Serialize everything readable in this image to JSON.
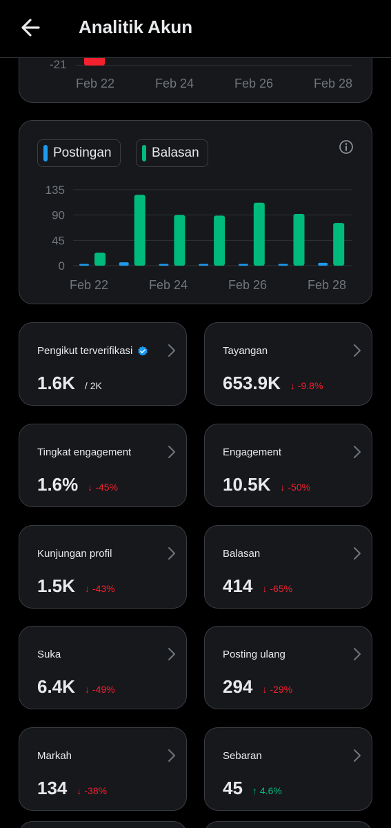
{
  "header": {
    "title": "Analitik Akun"
  },
  "top_chart": {
    "tick_label": "-21",
    "x_labels": [
      "Feb 22",
      "Feb 24",
      "Feb 26",
      "Feb 28"
    ],
    "bar_color": "#f4212e"
  },
  "legend": {
    "items": [
      {
        "label": "Postingan",
        "color": "#1d9bf0"
      },
      {
        "label": "Balasan",
        "color": "#00ba7c"
      }
    ]
  },
  "chart_data": {
    "type": "bar",
    "categories": [
      "Feb 22",
      "Feb 23",
      "Feb 24",
      "Feb 25",
      "Feb 26",
      "Feb 27",
      "Feb 28"
    ],
    "series": [
      {
        "name": "Postingan",
        "color": "#1d9bf0",
        "values": [
          2,
          6,
          3,
          2,
          3,
          3,
          5
        ]
      },
      {
        "name": "Balasan",
        "color": "#00ba7c",
        "values": [
          23,
          126,
          90,
          89,
          112,
          92,
          76
        ]
      }
    ],
    "y_ticks": [
      135,
      90,
      45,
      0
    ],
    "x_tick_labels": [
      "Feb 22",
      "Feb 24",
      "Feb 26",
      "Feb 28"
    ],
    "ylim": [
      0,
      135
    ]
  },
  "stats": [
    {
      "label": "Pengikut terverifikasi",
      "value": "1.6K",
      "sub": "/ 2K",
      "verified": true,
      "delta": "",
      "dir": ""
    },
    {
      "label": "Tayangan",
      "value": "653.9K",
      "delta": "-9.8%",
      "dir": "down"
    },
    {
      "label": "Tingkat engagement",
      "value": "1.6%",
      "delta": "-45%",
      "dir": "down"
    },
    {
      "label": "Engagement",
      "value": "10.5K",
      "delta": "-50%",
      "dir": "down"
    },
    {
      "label": "Kunjungan profil",
      "value": "1.5K",
      "delta": "-43%",
      "dir": "down"
    },
    {
      "label": "Balasan",
      "value": "414",
      "delta": "-65%",
      "dir": "down"
    },
    {
      "label": "Suka",
      "value": "6.4K",
      "delta": "-49%",
      "dir": "down"
    },
    {
      "label": "Posting ulang",
      "value": "294",
      "delta": "-29%",
      "dir": "down"
    },
    {
      "label": "Markah",
      "value": "134",
      "delta": "-38%",
      "dir": "down"
    },
    {
      "label": "Sebaran",
      "value": "45",
      "delta": "4.6%",
      "dir": "up"
    }
  ],
  "colors": {
    "down": "#f4212e",
    "up": "#00ba7c",
    "verified": "#1d9bf0"
  }
}
